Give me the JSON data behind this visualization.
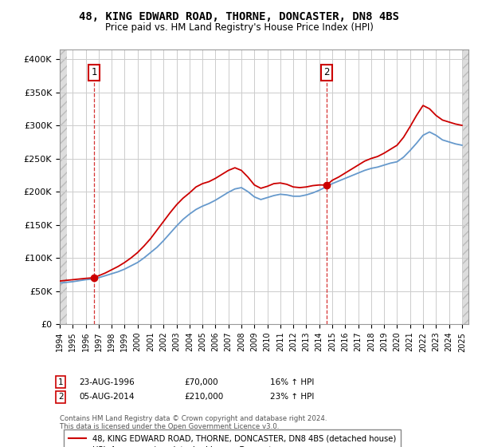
{
  "title": "48, KING EDWARD ROAD, THORNE, DONCASTER, DN8 4BS",
  "subtitle": "Price paid vs. HM Land Registry's House Price Index (HPI)",
  "title_fontsize": 10,
  "subtitle_fontsize": 8.5,
  "ylabel_ticks": [
    "£0",
    "£50K",
    "£100K",
    "£150K",
    "£200K",
    "£250K",
    "£300K",
    "£350K",
    "£400K"
  ],
  "ytick_values": [
    0,
    50000,
    100000,
    150000,
    200000,
    250000,
    300000,
    350000,
    400000
  ],
  "ylim": [
    0,
    415000
  ],
  "xlim_start": 1994.0,
  "xlim_end": 2025.5,
  "xticks": [
    1994,
    1995,
    1996,
    1997,
    1998,
    1999,
    2000,
    2001,
    2002,
    2003,
    2004,
    2005,
    2006,
    2007,
    2008,
    2009,
    2010,
    2011,
    2012,
    2013,
    2014,
    2015,
    2016,
    2017,
    2018,
    2019,
    2020,
    2021,
    2022,
    2023,
    2024,
    2025
  ],
  "line_color_red": "#cc0000",
  "line_color_blue": "#6699cc",
  "grid_color": "#cccccc",
  "sale1_x": 1996.64,
  "sale1_y": 70000,
  "sale2_x": 2014.59,
  "sale2_y": 210000,
  "legend_line1": "48, KING EDWARD ROAD, THORNE, DONCASTER, DN8 4BS (detached house)",
  "legend_line2": "HPI: Average price, detached house, Doncaster",
  "annotation1_date": "23-AUG-1996",
  "annotation1_price": "£70,000",
  "annotation1_hpi": "16% ↑ HPI",
  "annotation2_date": "05-AUG-2014",
  "annotation2_price": "£210,000",
  "annotation2_hpi": "23% ↑ HPI",
  "footer": "Contains HM Land Registry data © Crown copyright and database right 2024.\nThis data is licensed under the Open Government Licence v3.0.",
  "hpi_years": [
    1994.0,
    1994.5,
    1995.0,
    1995.5,
    1996.0,
    1996.5,
    1997.0,
    1997.5,
    1998.0,
    1998.5,
    1999.0,
    1999.5,
    2000.0,
    2000.5,
    2001.0,
    2001.5,
    2002.0,
    2002.5,
    2003.0,
    2003.5,
    2004.0,
    2004.5,
    2005.0,
    2005.5,
    2006.0,
    2006.5,
    2007.0,
    2007.5,
    2008.0,
    2008.5,
    2009.0,
    2009.5,
    2010.0,
    2010.5,
    2011.0,
    2011.5,
    2012.0,
    2012.5,
    2013.0,
    2013.5,
    2014.0,
    2014.5,
    2015.0,
    2015.5,
    2016.0,
    2016.5,
    2017.0,
    2017.5,
    2018.0,
    2018.5,
    2019.0,
    2019.5,
    2020.0,
    2020.5,
    2021.0,
    2021.5,
    2022.0,
    2022.5,
    2023.0,
    2023.5,
    2024.0,
    2024.5,
    2025.0
  ],
  "hpi_values": [
    62000,
    63000,
    64000,
    65500,
    67000,
    68000,
    70000,
    73000,
    76000,
    79000,
    83000,
    88000,
    93000,
    100000,
    108000,
    116000,
    126000,
    137000,
    148000,
    158000,
    166000,
    173000,
    178000,
    182000,
    187000,
    193000,
    199000,
    204000,
    206000,
    200000,
    192000,
    188000,
    191000,
    194000,
    196000,
    195000,
    193000,
    193000,
    195000,
    198000,
    202000,
    207000,
    212000,
    216000,
    220000,
    224000,
    228000,
    232000,
    235000,
    237000,
    240000,
    243000,
    245000,
    252000,
    262000,
    273000,
    285000,
    290000,
    285000,
    278000,
    275000,
    272000,
    270000
  ],
  "red_years": [
    1994.0,
    1994.5,
    1995.0,
    1995.5,
    1996.0,
    1996.64,
    1997.0,
    1997.5,
    1998.0,
    1998.5,
    1999.0,
    1999.5,
    2000.0,
    2000.5,
    2001.0,
    2001.5,
    2002.0,
    2002.5,
    2003.0,
    2003.5,
    2004.0,
    2004.5,
    2005.0,
    2005.5,
    2006.0,
    2006.5,
    2007.0,
    2007.5,
    2008.0,
    2008.5,
    2009.0,
    2009.5,
    2010.0,
    2010.5,
    2011.0,
    2011.5,
    2012.0,
    2012.5,
    2013.0,
    2013.5,
    2014.0,
    2014.59,
    2015.0,
    2015.5,
    2016.0,
    2016.5,
    2017.0,
    2017.5,
    2018.0,
    2018.5,
    2019.0,
    2019.5,
    2020.0,
    2020.5,
    2021.0,
    2021.5,
    2022.0,
    2022.5,
    2023.0,
    2023.5,
    2024.0,
    2024.5,
    2025.0
  ],
  "red_values": [
    65000,
    66000,
    67000,
    68000,
    69000,
    70000,
    73000,
    77000,
    82000,
    87000,
    93000,
    100000,
    108000,
    118000,
    129000,
    142000,
    155000,
    168000,
    180000,
    190000,
    198000,
    207000,
    212000,
    215000,
    220000,
    226000,
    232000,
    236000,
    232000,
    222000,
    210000,
    205000,
    208000,
    212000,
    213000,
    211000,
    207000,
    206000,
    207000,
    209000,
    210000,
    210000,
    217000,
    222000,
    228000,
    234000,
    240000,
    246000,
    250000,
    253000,
    258000,
    264000,
    270000,
    282000,
    298000,
    315000,
    330000,
    325000,
    315000,
    308000,
    305000,
    302000,
    300000
  ]
}
